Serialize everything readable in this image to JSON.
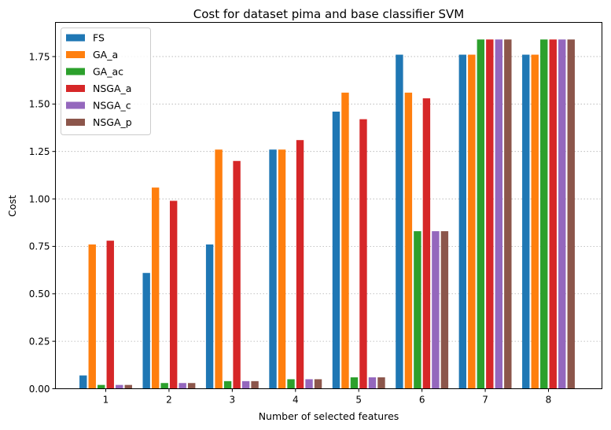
{
  "chart_data": {
    "type": "bar",
    "title": "Cost for dataset pima and base classifier SVM",
    "xlabel": "Number of selected features",
    "ylabel": "Cost",
    "categories": [
      "1",
      "2",
      "3",
      "4",
      "5",
      "6",
      "7",
      "8"
    ],
    "ylim": [
      0,
      1.93
    ],
    "yticks": [
      "0.00",
      "0.25",
      "0.50",
      "0.75",
      "1.00",
      "1.25",
      "1.50",
      "1.75"
    ],
    "grid": "y-dotted",
    "legend_position": "top-left",
    "series": [
      {
        "name": "FS",
        "color": "#1f77b4",
        "values": [
          0.07,
          0.61,
          0.76,
          1.26,
          1.46,
          1.76,
          1.76,
          1.76
        ]
      },
      {
        "name": "GA_a",
        "color": "#ff7f0e",
        "values": [
          0.76,
          1.06,
          1.26,
          1.26,
          1.56,
          1.56,
          1.76,
          1.76
        ]
      },
      {
        "name": "GA_ac",
        "color": "#2ca02c",
        "values": [
          0.02,
          0.03,
          0.04,
          0.05,
          0.06,
          0.83,
          1.84,
          1.84
        ]
      },
      {
        "name": "NSGA_a",
        "color": "#d62728",
        "values": [
          0.78,
          0.99,
          1.2,
          1.31,
          1.42,
          1.53,
          1.84,
          1.84
        ]
      },
      {
        "name": "NSGA_c",
        "color": "#9467bd",
        "values": [
          0.02,
          0.03,
          0.04,
          0.05,
          0.06,
          0.83,
          1.84,
          1.84
        ]
      },
      {
        "name": "NSGA_p",
        "color": "#8c564b",
        "values": [
          0.02,
          0.03,
          0.04,
          0.05,
          0.06,
          0.83,
          1.84,
          1.84
        ]
      }
    ]
  }
}
